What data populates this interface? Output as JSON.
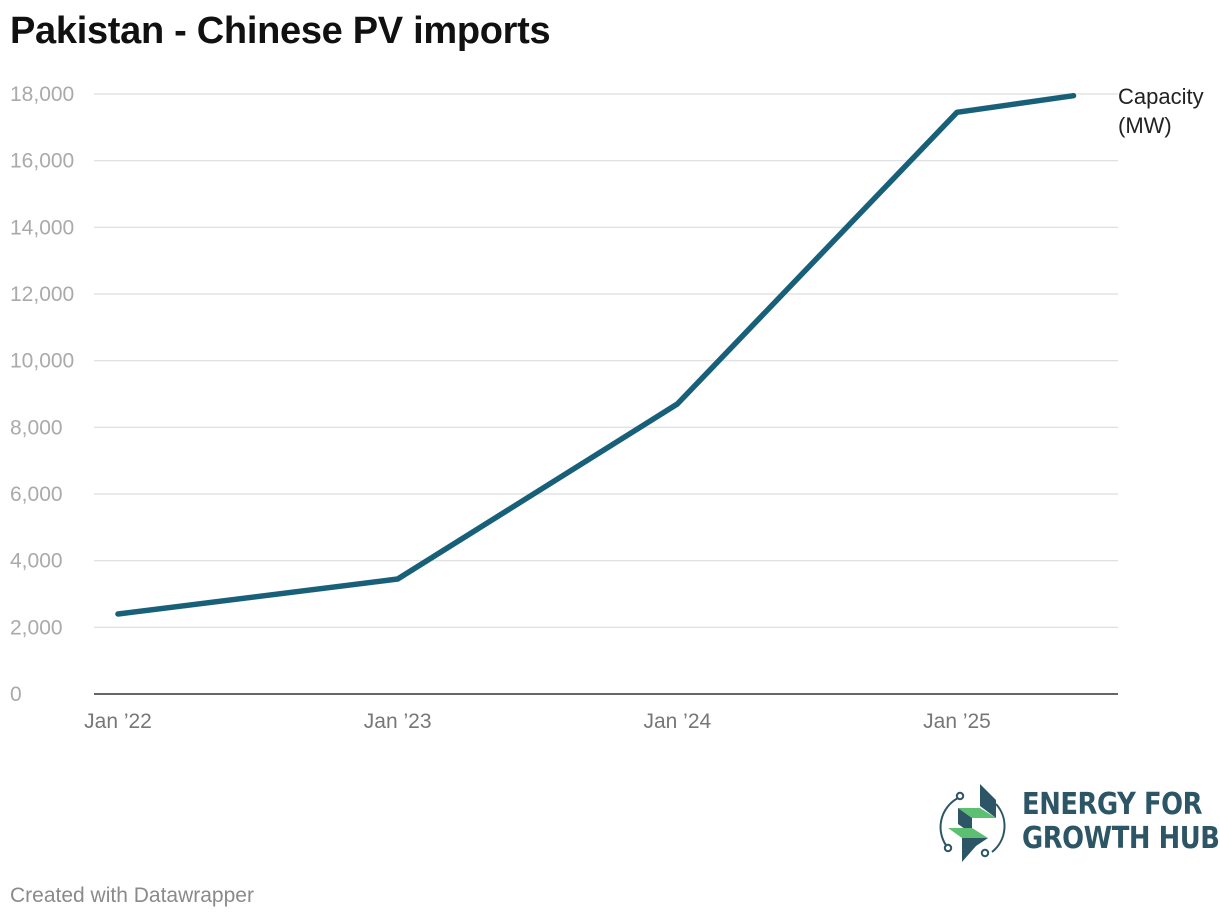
{
  "title": "Pakistan - Chinese PV imports",
  "chart_data": {
    "type": "line",
    "title": "Pakistan - Chinese PV imports",
    "x": [
      "2022-01",
      "2023-01",
      "2024-01",
      "2025-01",
      "2025-06"
    ],
    "x_tick_labels": [
      "Jan ’22",
      "Jan ’23",
      "Jan ’24",
      "Jan ’25"
    ],
    "x_tick_positions": [
      "2022-01",
      "2023-01",
      "2024-01",
      "2025-01"
    ],
    "y_tick_labels": [
      "0",
      "2,000",
      "4,000",
      "6,000",
      "8,000",
      "10,000",
      "12,000",
      "14,000",
      "16,000",
      "18,000"
    ],
    "ylim": [
      0,
      18000
    ],
    "series": [
      {
        "name": "Capacity (MW)",
        "label_lines": [
          "Capacity",
          "(MW)"
        ],
        "values": [
          2400,
          3450,
          8700,
          17450,
          17950
        ],
        "color": "#18607a"
      }
    ],
    "grid": true,
    "legend": "direct label at line end"
  },
  "logo": {
    "line1": "ENERGY FOR",
    "line2": "GROWTH HUB",
    "colors": {
      "text": "#2c5566",
      "green": "#5cbf72",
      "navy": "#2c5566"
    }
  },
  "credit": "Created with Datawrapper"
}
